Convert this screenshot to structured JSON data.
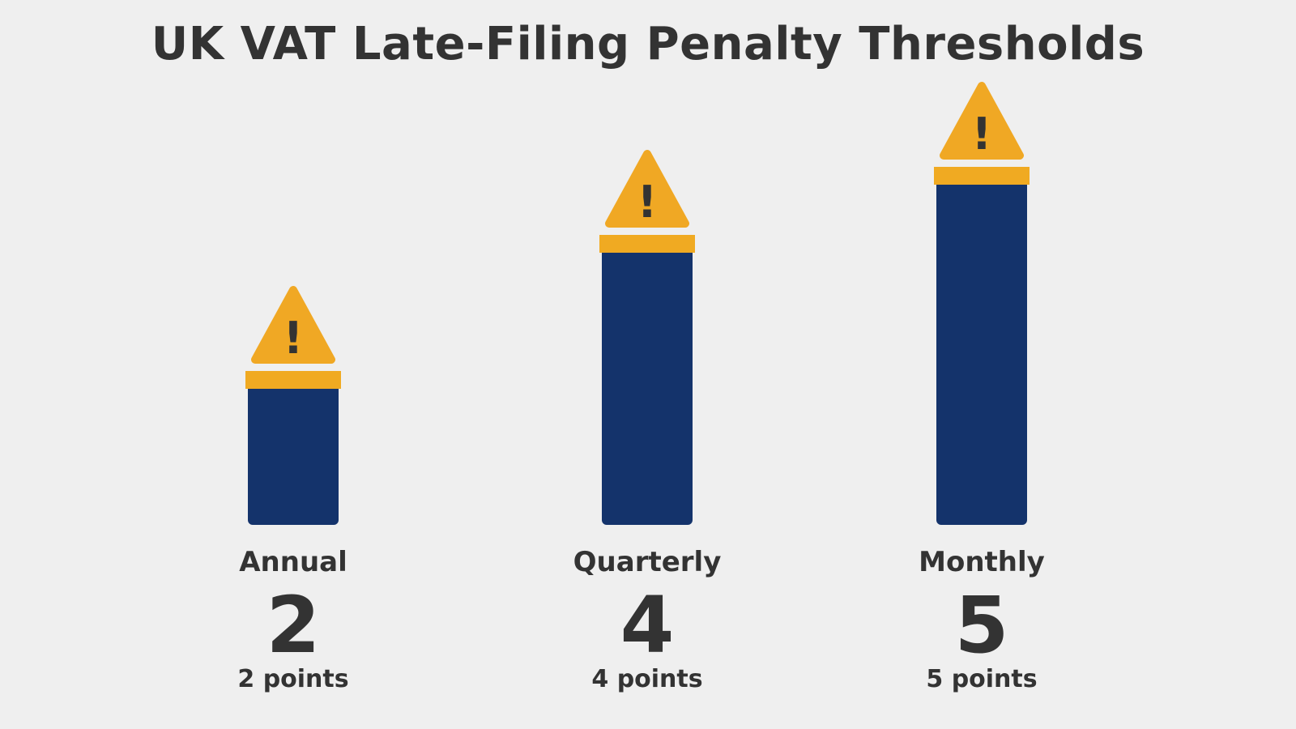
{
  "chart_data": {
    "type": "bar",
    "title": "UK VAT Late-Filing Penalty Thresholds",
    "xlabel": "",
    "ylabel": "",
    "categories": [
      "Annual",
      "Quarterly",
      "Monthly"
    ],
    "values": [
      2,
      4,
      5
    ],
    "value_labels": [
      "2",
      "4",
      "5"
    ],
    "sub_labels": [
      "2 points",
      "4 points",
      "5 points"
    ],
    "ylim": [
      0,
      5.5
    ],
    "grid": false,
    "legend": "none",
    "icon": "warning-triangle-icon",
    "colors": {
      "bar": "#14336b",
      "cap": "#f0aa22",
      "warning": "#f0a824",
      "text": "#333333",
      "background": "#efefef"
    }
  }
}
